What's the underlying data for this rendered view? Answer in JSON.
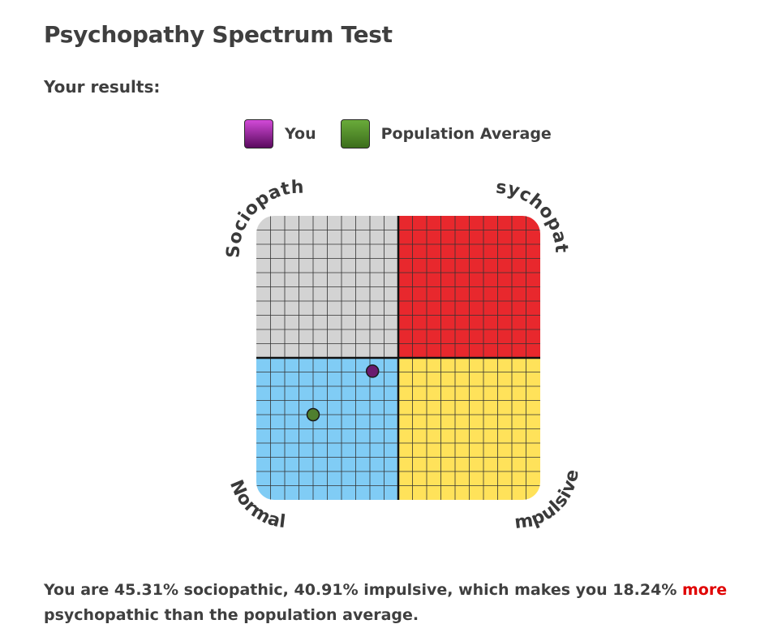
{
  "page": {
    "title": "Psychopathy Spectrum Test",
    "results_heading": "Your results:"
  },
  "legend": {
    "items": [
      {
        "label": "You",
        "color_top": "#d24ad8",
        "color_bottom": "#5a0a5e"
      },
      {
        "label": "Population Average",
        "color_top": "#6aab3a",
        "color_bottom": "#3c6e1c"
      }
    ]
  },
  "chart_data": {
    "type": "scatter",
    "title": "",
    "xlabel": "",
    "ylabel": "",
    "xlim": [
      0,
      100
    ],
    "ylim": [
      0,
      100
    ],
    "grid": true,
    "grid_divisions": 20,
    "legend_position": "top",
    "quadrants": [
      {
        "name": "Sociopath",
        "position": "top-left",
        "color": "#d3d3d3"
      },
      {
        "name": "Psychopath",
        "position": "top-right",
        "color": "#e8282d"
      },
      {
        "name": "Normal",
        "position": "bottom-left",
        "color": "#80ccf5"
      },
      {
        "name": "Impulsive",
        "position": "bottom-right",
        "color": "#ffe25a"
      }
    ],
    "corner_labels": {
      "top_left": "Sociopath",
      "top_right": "Psychopath",
      "bottom_left": "Normal",
      "bottom_right": "Impulsive"
    },
    "series": [
      {
        "name": "You",
        "x": 40.91,
        "y": 45.31,
        "color": "#6a1a6e"
      },
      {
        "name": "Population Average",
        "x": 20,
        "y": 30,
        "color": "#4f7f2f"
      }
    ]
  },
  "summary": {
    "part1": "You are 45.31% sociopathic, 40.91% impulsive, which makes you 18.24% ",
    "highlight": "more",
    "part2": " psychopathic than the population average.",
    "highlight_color": "#e00000"
  }
}
